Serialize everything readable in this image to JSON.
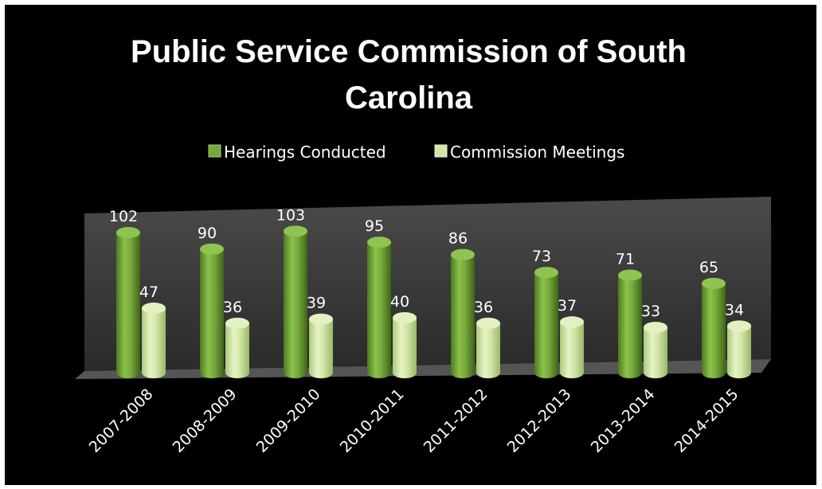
{
  "chart_data": {
    "type": "bar",
    "title_lines": [
      "Public Service Commission of South",
      "Carolina"
    ],
    "categories": [
      "2007-2008",
      "2008-2009",
      "2009-2010",
      "2010-2011",
      "2011-2012",
      "2012-2013",
      "2013-2014",
      "2014-2015"
    ],
    "series": [
      {
        "name": "Hearings Conducted",
        "values": [
          102,
          90,
          103,
          95,
          86,
          73,
          71,
          65
        ],
        "color": "#77a83c"
      },
      {
        "name": "Commission Meetings",
        "values": [
          47,
          36,
          39,
          40,
          36,
          37,
          33,
          34
        ],
        "color": "#d3e6a8"
      }
    ],
    "ylim": [
      0,
      120
    ],
    "legend_position": "top",
    "grid": false,
    "style": "3d-cylinder",
    "background": "#000000",
    "floor_color": "#444444"
  }
}
